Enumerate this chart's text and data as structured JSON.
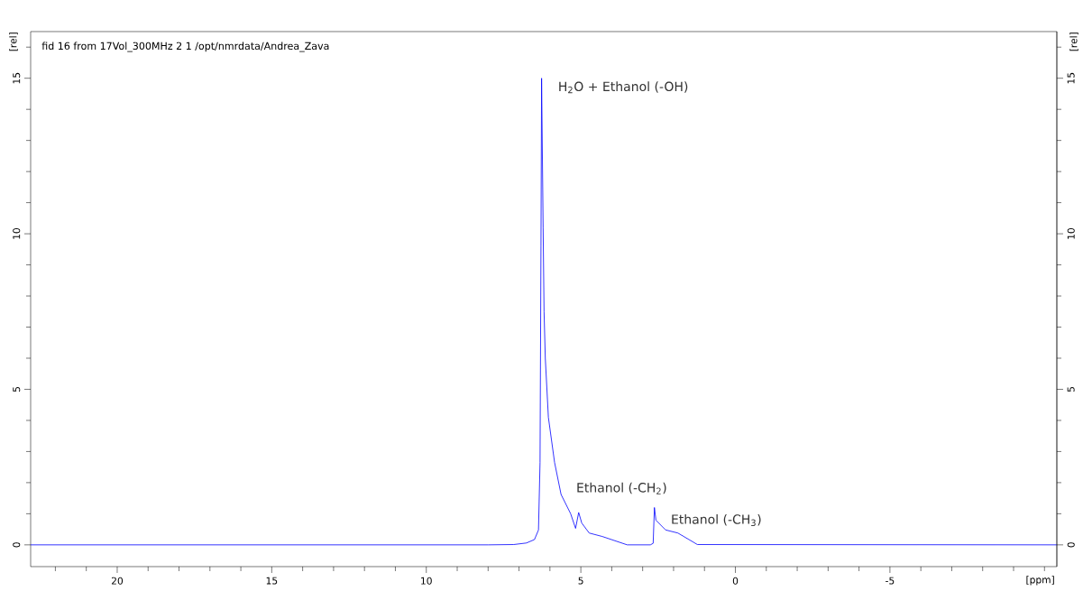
{
  "chart_data": {
    "type": "line",
    "title": "fid 16 from 17Vol_300MHz  2  1  /opt/nmrdata/Andrea_Zava",
    "xlabel": "[ppm]",
    "ylabel": "[rel]",
    "y2label": "[rel]",
    "x": [
      22.8,
      8.0,
      7.17,
      6.76,
      6.5,
      6.37,
      6.32,
      6.29,
      6.27,
      6.22,
      6.19,
      6.15,
      6.05,
      5.85,
      5.64,
      5.33,
      5.17,
      5.07,
      4.97,
      4.73,
      4.31,
      3.5,
      2.75,
      2.66,
      2.62,
      2.57,
      2.26,
      1.86,
      1.23,
      -10.4
    ],
    "series": [
      {
        "color": "#0000ff",
        "values": [
          0,
          0,
          0.01,
          0.06,
          0.17,
          0.48,
          2.65,
          9.6,
          15.0,
          10.2,
          7.5,
          6.0,
          4.1,
          2.65,
          1.62,
          1.0,
          0.53,
          1.04,
          0.7,
          0.38,
          0.27,
          0.0,
          0.0,
          0.05,
          1.2,
          0.79,
          0.48,
          0.38,
          0.01,
          0
        ]
      }
    ],
    "annotations": [
      {
        "text": "H$_{2}$O + Ethanol (-OH)",
        "x": 6.27,
        "y": 15.0
      },
      {
        "text": "Ethanol (-CH$_{2}$)",
        "x": 5.07,
        "y": 1.04
      },
      {
        "text": "Ethanol (-CH$_{3}$)",
        "x": 2.62,
        "y": 1.2
      }
    ],
    "xlim": [
      22.8,
      -10.4
    ],
    "xticks": [
      {
        "value": 22,
        "label": null
      },
      {
        "value": 21,
        "label": null
      },
      20,
      {
        "value": 19,
        "label": null
      },
      {
        "value": 18,
        "label": null
      },
      {
        "value": 17,
        "label": null
      },
      {
        "value": 16,
        "label": null
      },
      15,
      {
        "value": 14,
        "label": null
      },
      {
        "value": 13,
        "label": null
      },
      {
        "value": 12,
        "label": null
      },
      {
        "value": 11,
        "label": null
      },
      10,
      {
        "value": 9,
        "label": null
      },
      {
        "value": 8,
        "label": null
      },
      {
        "value": 7,
        "label": null
      },
      {
        "value": 6,
        "label": null
      },
      5,
      {
        "value": 4,
        "label": null
      },
      {
        "value": 3,
        "label": null
      },
      {
        "value": 2,
        "label": null
      },
      {
        "value": 1,
        "label": null
      },
      0,
      {
        "value": -1,
        "label": null
      },
      {
        "value": -2,
        "label": null
      },
      {
        "value": -3,
        "label": null
      },
      {
        "value": -4,
        "label": null
      },
      -5,
      {
        "value": -6,
        "label": null
      },
      {
        "value": -7,
        "label": null
      },
      {
        "value": -8,
        "label": null
      },
      {
        "value": -9,
        "label": null
      },
      {
        "value": -10,
        "label": null
      }
    ],
    "ylim": [
      -0.7,
      16.5
    ],
    "yticks": [
      0,
      {
        "value": 1,
        "label": null
      },
      {
        "value": 2,
        "label": null
      },
      {
        "value": 3,
        "label": null
      },
      {
        "value": 4,
        "label": null
      },
      5,
      {
        "value": 6,
        "label": null
      },
      {
        "value": 7,
        "label": null
      },
      {
        "value": 8,
        "label": null
      },
      {
        "value": 9,
        "label": null
      },
      10,
      {
        "value": 11,
        "label": null
      },
      {
        "value": 12,
        "label": null
      },
      {
        "value": 13,
        "label": null
      },
      {
        "value": 14,
        "label": null
      },
      15,
      {
        "value": 16,
        "label": null
      }
    ],
    "y2lim": [
      -0.7,
      16.5
    ],
    "y2ticks": [
      0,
      {
        "value": 1,
        "label": null
      },
      {
        "value": 2,
        "label": null
      },
      {
        "value": 3,
        "label": null
      },
      {
        "value": 4,
        "label": null
      },
      5,
      {
        "value": 6,
        "label": null
      },
      {
        "value": 7,
        "label": null
      },
      {
        "value": 8,
        "label": null
      },
      {
        "value": 9,
        "label": null
      },
      10,
      {
        "value": 11,
        "label": null
      },
      {
        "value": 12,
        "label": null
      },
      {
        "value": 13,
        "label": null
      },
      {
        "value": 14,
        "label": null
      },
      15,
      {
        "value": 16,
        "label": null
      }
    ]
  }
}
